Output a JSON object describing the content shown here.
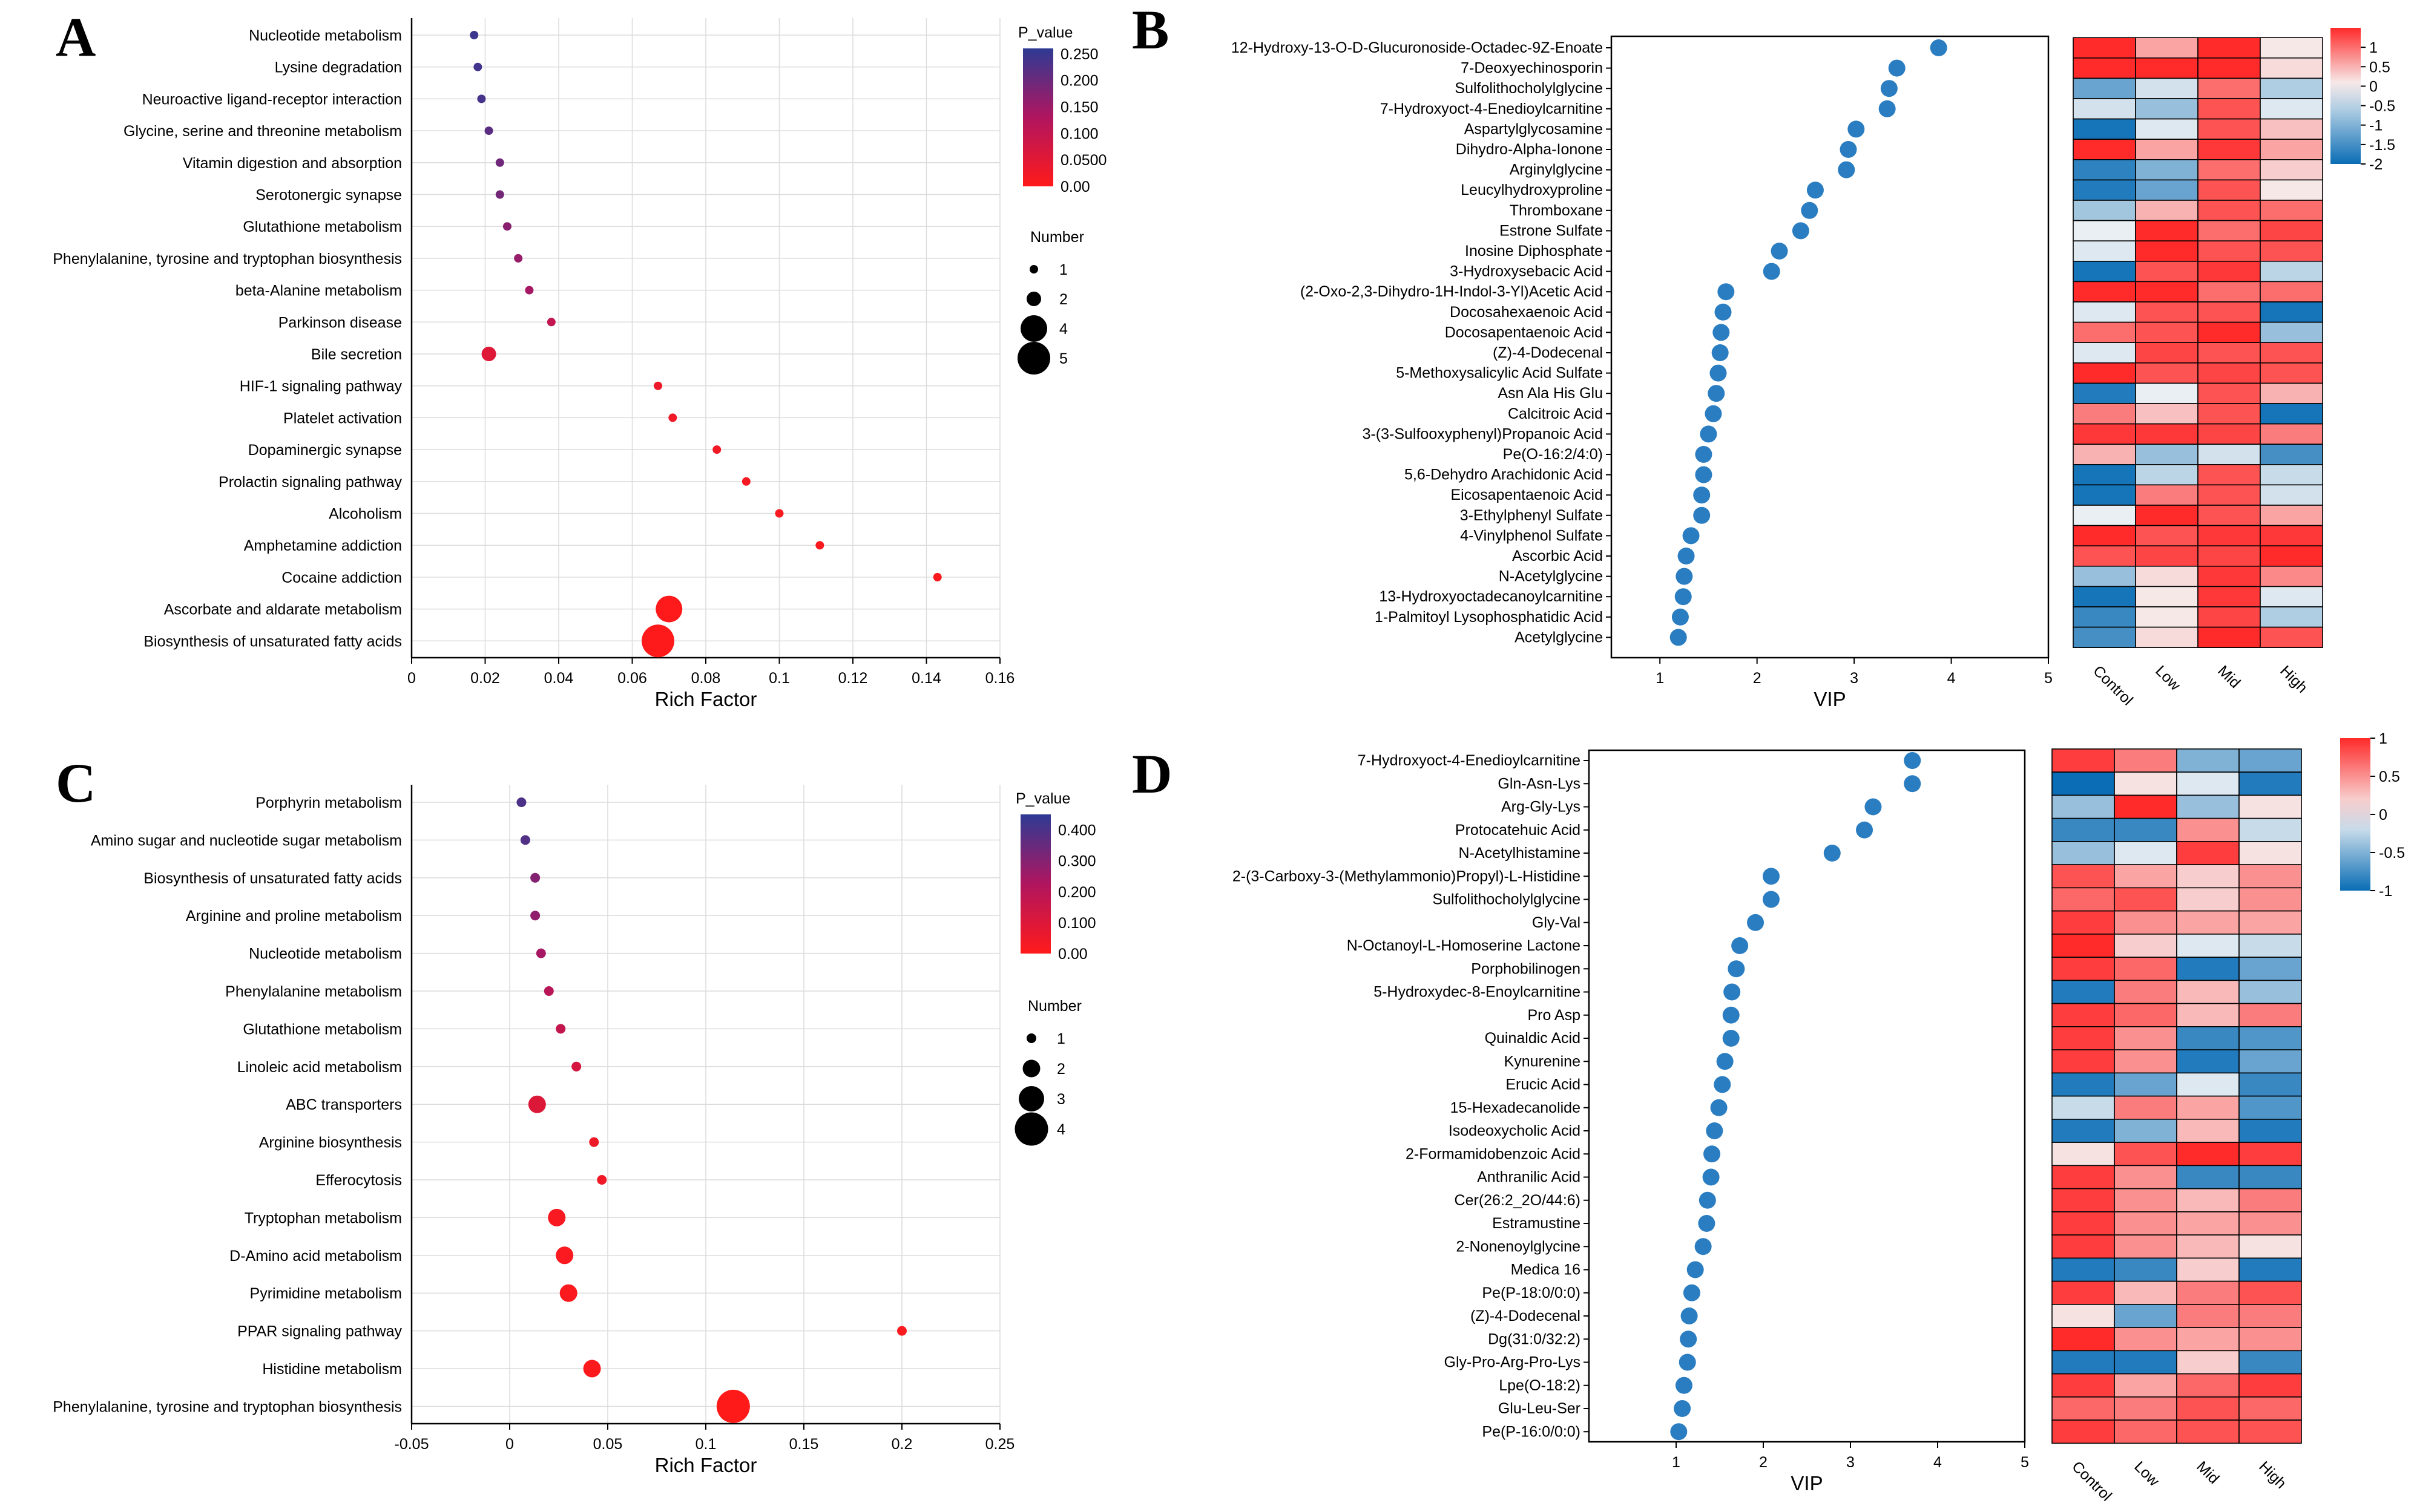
{
  "colors": {
    "pval_low": "#ff1a1a",
    "pval_mid": "#b0155f",
    "pval_high": "#2e3a94",
    "vip_dot": "#2a7dc0",
    "heat_neg": "#0a6db5",
    "heat_zero": "#f6f6f6",
    "heat_pos": "#ff2a2a"
  },
  "chart_data": [
    {
      "panel": "A",
      "type": "scatter",
      "subtype": "bubble-enrichment",
      "xlabel": "Rich Factor",
      "xlim": [
        0,
        0.16
      ],
      "xticks": [
        "0",
        "0.02",
        "0.04",
        "0.06",
        "0.08",
        "0.1",
        "0.12",
        "0.14",
        "0.16"
      ],
      "xtick_values": [
        0,
        0.02,
        0.04,
        0.06,
        0.08,
        0.1,
        0.12,
        0.14,
        0.16
      ],
      "categories": [
        "Nucleotide metabolism",
        "Lysine degradation",
        "Neuroactive ligand-receptor interaction",
        "Glycine, serine and threonine metabolism",
        "Vitamin digestion and absorption",
        "Serotonergic synapse",
        "Glutathione metabolism",
        "Phenylalanine, tyrosine and tryptophan biosynthesis",
        "beta-Alanine metabolism",
        "Parkinson disease",
        "Bile secretion",
        "HIF-1 signaling pathway",
        "Platelet activation",
        "Dopaminergic synapse",
        "Prolactin signaling pathway",
        "Alcoholism",
        "Amphetamine addiction",
        "Cocaine addiction",
        "Ascorbate and aldarate metabolism",
        "Biosynthesis of unsaturated fatty acids"
      ],
      "rich_factor": [
        0.017,
        0.018,
        0.019,
        0.021,
        0.024,
        0.024,
        0.026,
        0.029,
        0.032,
        0.038,
        0.021,
        0.067,
        0.071,
        0.083,
        0.091,
        0.1,
        0.111,
        0.143,
        0.07,
        0.067
      ],
      "p_value": [
        0.245,
        0.24,
        0.235,
        0.215,
        0.195,
        0.19,
        0.17,
        0.155,
        0.14,
        0.1,
        0.055,
        0.03,
        0.025,
        0.02,
        0.015,
        0.012,
        0.01,
        0.008,
        0.002,
        0.001
      ],
      "number": [
        1,
        1,
        1,
        1,
        1,
        1,
        1,
        1,
        1,
        1,
        2,
        1,
        1,
        1,
        1,
        1,
        1,
        1,
        4,
        5
      ],
      "color_legend": {
        "title": "P_value",
        "ticks": [
          "0.250",
          "0.200",
          "0.150",
          "0.100",
          "0.0500",
          "0.00"
        ],
        "values": [
          0.25,
          0.2,
          0.15,
          0.1,
          0.05,
          0
        ],
        "max": 0.26
      },
      "size_legend": {
        "title": "Number",
        "labels": [
          "1",
          "2",
          "4",
          "5"
        ],
        "values": [
          1,
          2,
          4,
          5
        ]
      }
    },
    {
      "panel": "B",
      "type": "scatter",
      "subtype": "vip-with-heatmap",
      "xlabel": "VIP",
      "xlim": [
        0.5,
        5
      ],
      "xticks": [
        "1",
        "2",
        "3",
        "4",
        "5"
      ],
      "xtick_values": [
        1,
        2,
        3,
        4,
        5
      ],
      "metabolites": [
        "12-Hydroxy-13-O-D-Glucuronoside-Octadec-9Z-Enoate",
        "7-Deoxyechinosporin",
        "Sulfolithocholylglycine",
        "7-Hydroxyoct-4-Enedioylcarnitine",
        "Aspartylglycosamine",
        "Dihydro-Alpha-Ionone",
        "Arginylglycine",
        "Leucylhydroxyproline",
        "Thromboxane",
        "Estrone Sulfate",
        "Inosine Diphosphate",
        "3-Hydroxysebacic Acid",
        "(2-Oxo-2,3-Dihydro-1H-Indol-3-Yl)Acetic Acid",
        "Docosahexaenoic Acid",
        "Docosapentaenoic Acid",
        "(Z)-4-Dodecenal",
        "5-Methoxysalicylic Acid Sulfate",
        "Asn Ala His Glu",
        "Calcitroic Acid",
        "3-(3-Sulfooxyphenyl)Propanoic Acid",
        "Pe(O-16:2/4:0)",
        "5,6-Dehydro Arachidonic Acid",
        "Eicosapentaenoic Acid",
        "3-Ethylphenyl Sulfate",
        "4-Vinylphenol Sulfate",
        "Ascorbic Acid",
        "N-Acetylglycine",
        "13-Hydroxyoctadecanoylcarnitine",
        "1-Palmitoyl Lysophosphatidic Acid",
        "Acetylglycine"
      ],
      "vip": [
        3.87,
        3.44,
        3.36,
        3.34,
        3.02,
        2.94,
        2.92,
        2.6,
        2.54,
        2.45,
        2.23,
        2.15,
        1.68,
        1.65,
        1.63,
        1.62,
        1.6,
        1.58,
        1.55,
        1.5,
        1.45,
        1.45,
        1.43,
        1.43,
        1.32,
        1.27,
        1.25,
        1.24,
        1.21,
        1.19
      ],
      "groups": [
        "Control",
        "Low",
        "Mid",
        "High"
      ],
      "heatmap": [
        [
          1.8,
          0.6,
          1.5,
          0.1
        ],
        [
          1.9,
          1.6,
          1.5,
          0.2
        ],
        [
          -1.2,
          -0.3,
          1.0,
          -0.6
        ],
        [
          -0.3,
          -0.8,
          1.2,
          -0.2
        ],
        [
          -1.9,
          -0.2,
          1.2,
          0.4
        ],
        [
          1.9,
          0.6,
          1.4,
          0.6
        ],
        [
          -1.7,
          -1.0,
          1.0,
          0.3
        ],
        [
          -1.8,
          -1.2,
          1.2,
          0.1
        ],
        [
          -0.7,
          0.5,
          1.2,
          1.0
        ],
        [
          -0.1,
          1.5,
          1.0,
          1.3
        ],
        [
          -0.2,
          1.5,
          1.2,
          1.2
        ],
        [
          -1.9,
          1.2,
          1.4,
          -0.5
        ],
        [
          1.9,
          1.6,
          1.0,
          1.0
        ],
        [
          -0.2,
          1.2,
          1.2,
          -1.9
        ],
        [
          1.0,
          1.2,
          1.9,
          -0.8
        ],
        [
          -0.2,
          1.3,
          1.2,
          1.2
        ],
        [
          1.6,
          1.2,
          1.3,
          1.2
        ],
        [
          -1.8,
          -0.1,
          1.2,
          0.5
        ],
        [
          0.9,
          0.4,
          1.2,
          -1.9
        ],
        [
          1.4,
          1.4,
          1.3,
          0.9
        ],
        [
          0.5,
          -0.8,
          -0.3,
          -1.5
        ],
        [
          -1.9,
          -0.5,
          1.2,
          -0.4
        ],
        [
          -1.9,
          0.9,
          1.2,
          -0.3
        ],
        [
          -0.1,
          1.5,
          1.2,
          0.6
        ],
        [
          1.6,
          1.2,
          1.4,
          1.4
        ],
        [
          1.2,
          1.3,
          1.3,
          1.9
        ],
        [
          -0.8,
          0.2,
          1.4,
          0.8
        ],
        [
          -1.9,
          0.1,
          1.4,
          -0.2
        ],
        [
          -1.6,
          0.1,
          1.3,
          -0.6
        ],
        [
          -1.5,
          0.2,
          1.6,
          1.2
        ]
      ],
      "colorbar": {
        "ticks": [
          "1",
          "0.5",
          "0",
          "-0.5",
          "-1",
          "-1.5",
          "-2"
        ],
        "values": [
          1,
          0.5,
          0,
          -0.5,
          -1,
          -1.5,
          -2
        ],
        "min": -2,
        "max": 1.5
      }
    },
    {
      "panel": "C",
      "type": "scatter",
      "subtype": "bubble-enrichment",
      "xlabel": "Rich Factor",
      "xlim": [
        -0.05,
        0.25
      ],
      "xticks": [
        "-0.05",
        "0",
        "0.05",
        "0.1",
        "0.15",
        "0.2",
        "0.25"
      ],
      "xtick_values": [
        -0.05,
        0,
        0.05,
        0.1,
        0.15,
        0.2,
        0.25
      ],
      "categories": [
        "Porphyrin metabolism",
        "Amino sugar and nucleotide sugar metabolism",
        "Biosynthesis of unsaturated fatty acids",
        "Arginine and proline metabolism",
        "Nucleotide metabolism",
        "Phenylalanine metabolism",
        "Glutathione metabolism",
        "Linoleic acid metabolism",
        "ABC transporters",
        "Arginine biosynthesis",
        "Efferocytosis",
        "Tryptophan metabolism",
        "D-Amino acid metabolism",
        "Pyrimidine metabolism",
        "PPAR signaling pathway",
        "Histidine metabolism",
        "Phenylalanine, tyrosine and tryptophan biosynthesis"
      ],
      "rich_factor": [
        0.006,
        0.008,
        0.013,
        0.013,
        0.016,
        0.02,
        0.026,
        0.034,
        0.014,
        0.043,
        0.047,
        0.024,
        0.028,
        0.03,
        0.2,
        0.042,
        0.114
      ],
      "p_value": [
        0.4,
        0.39,
        0.3,
        0.28,
        0.24,
        0.2,
        0.17,
        0.12,
        0.1,
        0.05,
        0.04,
        0.02,
        0.015,
        0.012,
        0.01,
        0.005,
        0.001
      ],
      "number": [
        1,
        1,
        1,
        1,
        1,
        1,
        1,
        1,
        2,
        1,
        1,
        2,
        2,
        2,
        1,
        2,
        4
      ],
      "color_legend": {
        "title": "P_value",
        "ticks": [
          "0.400",
          "0.300",
          "0.200",
          "0.100",
          "0.00"
        ],
        "values": [
          0.4,
          0.3,
          0.2,
          0.1,
          0
        ],
        "max": 0.45
      },
      "size_legend": {
        "title": "Number",
        "labels": [
          "1",
          "2",
          "3",
          "4"
        ],
        "values": [
          1,
          2,
          3,
          4
        ]
      }
    },
    {
      "panel": "D",
      "type": "scatter",
      "subtype": "vip-with-heatmap",
      "xlabel": "VIP",
      "xlim": [
        0,
        5
      ],
      "xticks": [
        "1",
        "2",
        "3",
        "4",
        "5"
      ],
      "xtick_values": [
        1,
        2,
        3,
        4,
        5
      ],
      "metabolites": [
        "7-Hydroxyoct-4-Enedioylcarnitine",
        "Gln-Asn-Lys",
        "Arg-Gly-Lys",
        "Protocatehuic Acid",
        "N-Acetylhistamine",
        "2-(3-Carboxy-3-(Methylammonio)Propyl)-L-Histidine",
        "Sulfolithocholylglycine",
        "Gly-Val",
        "N-Octanoyl-L-Homoserine Lactone",
        "Porphobilinogen",
        "5-Hydroxydec-8-Enoylcarnitine",
        "Pro Asp",
        "Quinaldic Acid",
        "Kynurenine",
        "Erucic Acid",
        "15-Hexadecanolide",
        "Isodeoxycholic Acid",
        "2-Formamidobenzoic Acid",
        "Anthranilic Acid",
        "Cer(26:2_2O/44:6)",
        "Estramustine",
        "2-Nonenoylglycine",
        "Medica 16",
        "Pe(P-18:0/0:0)",
        "(Z)-4-Dodecenal",
        "Dg(31:0/32:2)",
        "Gly-Pro-Arg-Pro-Lys",
        "Lpe(O-18:2)",
        "Glu-Leu-Ser",
        "Pe(P-16:0/0:0)"
      ],
      "vip": [
        3.71,
        3.71,
        3.26,
        3.16,
        2.79,
        2.09,
        2.09,
        1.91,
        1.73,
        1.69,
        1.64,
        1.63,
        1.63,
        1.56,
        1.53,
        1.49,
        1.44,
        1.41,
        1.4,
        1.36,
        1.35,
        1.31,
        1.22,
        1.18,
        1.15,
        1.14,
        1.13,
        1.09,
        1.07,
        1.03
      ],
      "groups": [
        "Control",
        "Low",
        "Mid",
        "High"
      ],
      "heatmap": [
        [
          0.9,
          0.6,
          -0.5,
          -0.6
        ],
        [
          -1.0,
          0.1,
          -0.1,
          -0.9
        ],
        [
          -0.4,
          1.0,
          -0.4,
          0.1
        ],
        [
          -0.8,
          -0.8,
          0.5,
          -0.2
        ],
        [
          -0.4,
          -0.1,
          0.9,
          0.1
        ],
        [
          0.8,
          0.4,
          0.2,
          0.5
        ],
        [
          0.7,
          0.8,
          0.2,
          0.5
        ],
        [
          0.9,
          0.5,
          0.4,
          0.4
        ],
        [
          1.0,
          0.2,
          -0.1,
          -0.2
        ],
        [
          0.9,
          0.7,
          -0.9,
          -0.6
        ],
        [
          -0.9,
          0.6,
          0.3,
          -0.4
        ],
        [
          0.9,
          0.7,
          0.3,
          0.6
        ],
        [
          0.9,
          0.5,
          -0.8,
          -0.7
        ],
        [
          0.9,
          0.5,
          -0.9,
          -0.6
        ],
        [
          -0.9,
          -0.6,
          -0.1,
          -0.8
        ],
        [
          -0.2,
          0.6,
          0.4,
          -0.7
        ],
        [
          -0.9,
          -0.5,
          0.3,
          -0.9
        ],
        [
          0.1,
          0.8,
          1.0,
          0.9
        ],
        [
          0.9,
          0.5,
          -0.8,
          -0.8
        ],
        [
          0.9,
          0.5,
          0.3,
          0.6
        ],
        [
          0.9,
          0.5,
          0.4,
          0.5
        ],
        [
          0.9,
          0.5,
          0.3,
          0.1
        ],
        [
          -0.9,
          -0.8,
          0.2,
          -0.9
        ],
        [
          0.9,
          0.3,
          0.6,
          0.8
        ],
        [
          0.1,
          -0.6,
          0.6,
          0.6
        ],
        [
          1.0,
          0.5,
          0.4,
          0.5
        ],
        [
          -0.9,
          -0.9,
          0.2,
          -0.8
        ],
        [
          0.9,
          0.4,
          0.7,
          0.9
        ],
        [
          0.7,
          0.6,
          0.8,
          0.7
        ],
        [
          0.9,
          0.7,
          0.8,
          0.8
        ]
      ],
      "colorbar": {
        "ticks": [
          "1",
          "0.5",
          "0",
          "-0.5",
          "-1"
        ],
        "values": [
          1,
          0.5,
          0,
          -0.5,
          -1
        ],
        "min": -1,
        "max": 1
      }
    }
  ]
}
